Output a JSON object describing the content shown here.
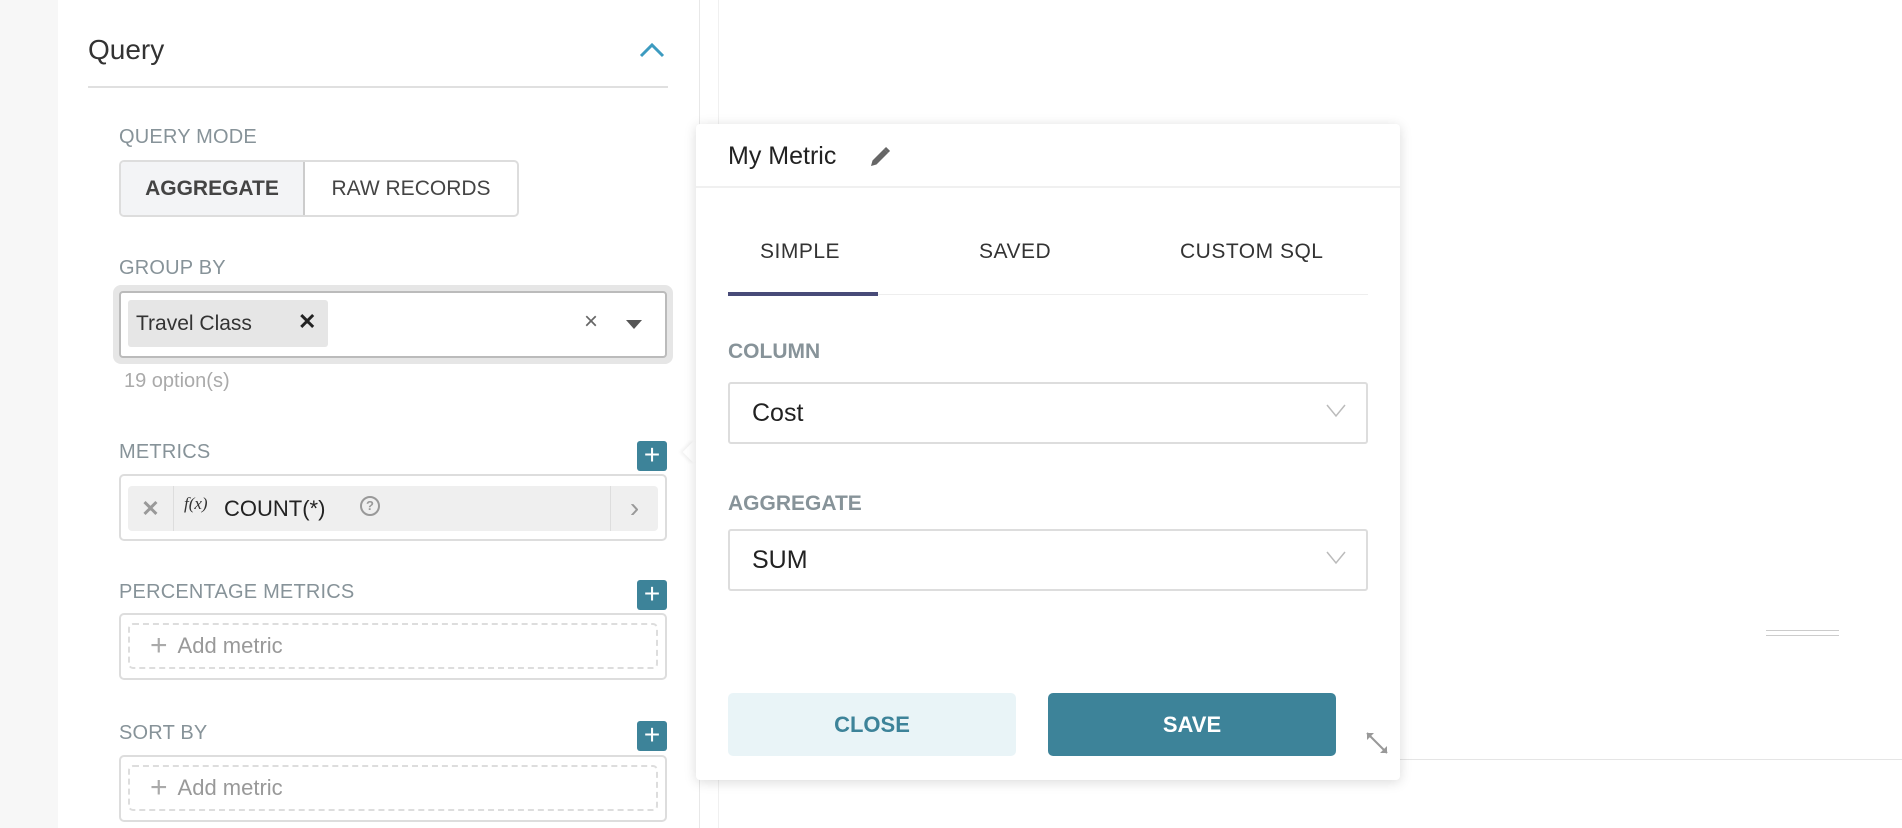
{
  "query": {
    "title": "Query",
    "query_mode": {
      "label": "QUERY MODE",
      "options": [
        "AGGREGATE",
        "RAW RECORDS"
      ],
      "selected": "AGGREGATE"
    },
    "group_by": {
      "label": "GROUP BY",
      "tags": [
        "Travel Class"
      ],
      "hint": "19 option(s)"
    },
    "metrics": {
      "label": "METRICS",
      "items": [
        {
          "prefix": "f(x)",
          "label": "COUNT(*)"
        }
      ]
    },
    "percentage_metrics": {
      "label": "PERCENTAGE METRICS",
      "placeholder": "Add metric"
    },
    "sort_by": {
      "label": "SORT BY",
      "placeholder": "Add metric"
    }
  },
  "popover": {
    "title": "My Metric",
    "tabs": [
      "SIMPLE",
      "SAVED",
      "CUSTOM SQL"
    ],
    "active_tab": "SIMPLE",
    "column": {
      "label": "COLUMN",
      "value": "Cost"
    },
    "aggregate": {
      "label": "AGGREGATE",
      "value": "SUM"
    },
    "close_label": "CLOSE",
    "save_label": "SAVE"
  },
  "colors": {
    "accent": "#3d8399",
    "tab_underline": "#484b78",
    "close_bg": "#e9f4f7"
  }
}
